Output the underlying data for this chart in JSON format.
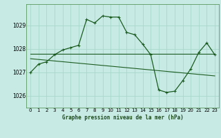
{
  "title": "Graphe pression niveau de la mer (hPa)",
  "bg_color": "#c8eae4",
  "grid_color": "#a8d8cc",
  "line_color": "#1a5c20",
  "xlim": [
    -0.5,
    23.5
  ],
  "ylim": [
    1025.5,
    1029.9
  ],
  "yticks": [
    1026,
    1027,
    1028,
    1029
  ],
  "xticks": [
    0,
    1,
    2,
    3,
    4,
    5,
    6,
    7,
    8,
    9,
    10,
    11,
    12,
    13,
    14,
    15,
    16,
    17,
    18,
    19,
    20,
    21,
    22,
    23
  ],
  "series1_x": [
    0,
    1,
    2,
    3,
    4,
    5,
    6,
    7,
    8,
    9,
    10,
    11,
    12,
    13,
    14,
    15,
    16,
    17,
    18,
    19,
    20,
    21,
    22,
    23
  ],
  "series1_y": [
    1027.0,
    1027.35,
    1027.45,
    1027.75,
    1027.95,
    1028.05,
    1028.15,
    1029.25,
    1029.1,
    1029.4,
    1029.35,
    1029.35,
    1028.7,
    1028.6,
    1028.2,
    1027.75,
    1026.25,
    1026.15,
    1026.2,
    1026.65,
    1027.15,
    1027.85,
    1028.25,
    1027.75
  ],
  "series2_x": [
    0,
    23
  ],
  "series2_y": [
    1027.78,
    1027.78
  ],
  "series3_x": [
    0,
    23
  ],
  "series3_y": [
    1027.58,
    1026.85
  ],
  "marker": "+"
}
